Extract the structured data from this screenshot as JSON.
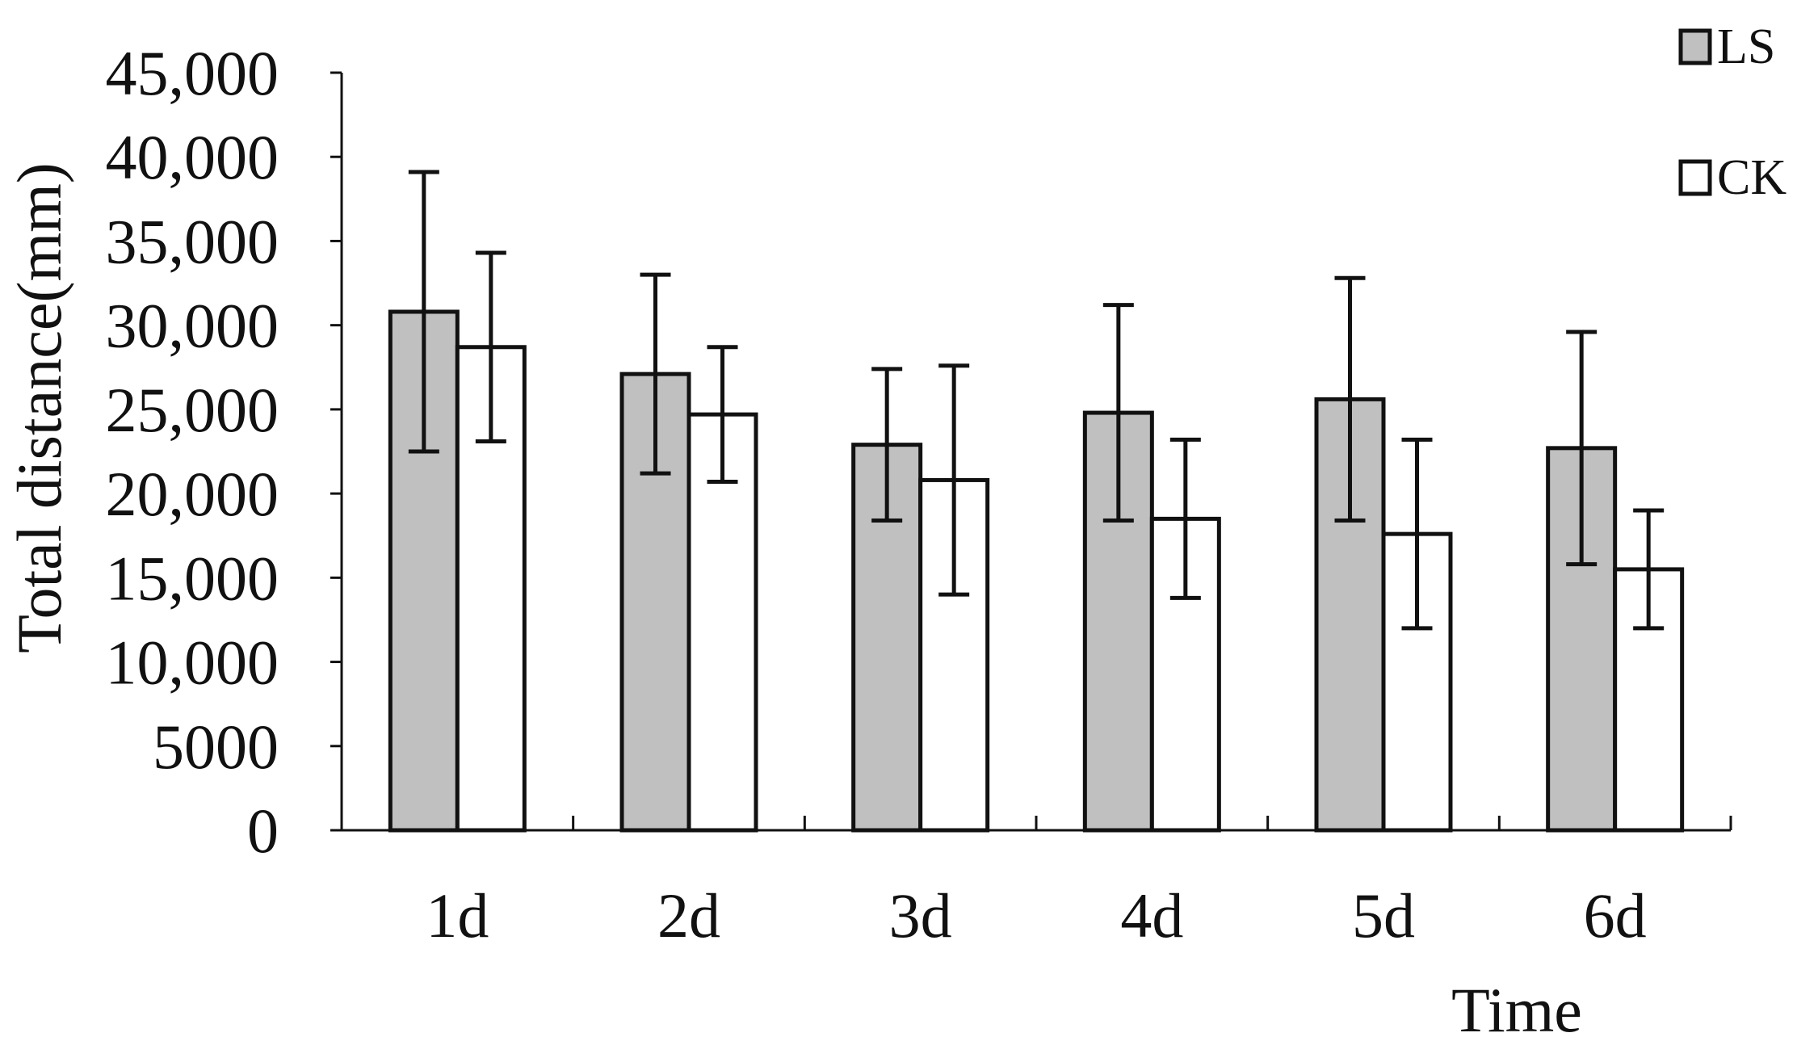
{
  "chart_data": {
    "type": "bar",
    "categories": [
      "1d",
      "2d",
      "3d",
      "4d",
      "5d",
      "6d"
    ],
    "series": [
      {
        "name": "LS",
        "color": "#c0c0c0",
        "values": [
          30800,
          27100,
          22900,
          24800,
          25600,
          22700
        ],
        "errors": [
          8300,
          5900,
          4500,
          6400,
          7200,
          6900
        ]
      },
      {
        "name": "CK",
        "color": "#ffffff",
        "values": [
          28700,
          24700,
          20800,
          18500,
          17600,
          15500
        ],
        "errors": [
          5600,
          4000,
          6800,
          4700,
          5600,
          3500
        ]
      }
    ],
    "ylabel": "Total distance(mm)",
    "xlabel": "Time",
    "ylim": [
      0,
      45000
    ],
    "yticks": [
      0,
      5000,
      10000,
      15000,
      20000,
      25000,
      30000,
      35000,
      40000,
      45000
    ],
    "ytick_labels": [
      "0",
      "5000",
      "10,000",
      "15,000",
      "20,000",
      "25,000",
      "30,000",
      "35,000",
      "40,000",
      "45,000"
    ],
    "legend_position": "top-right",
    "grid": false
  }
}
